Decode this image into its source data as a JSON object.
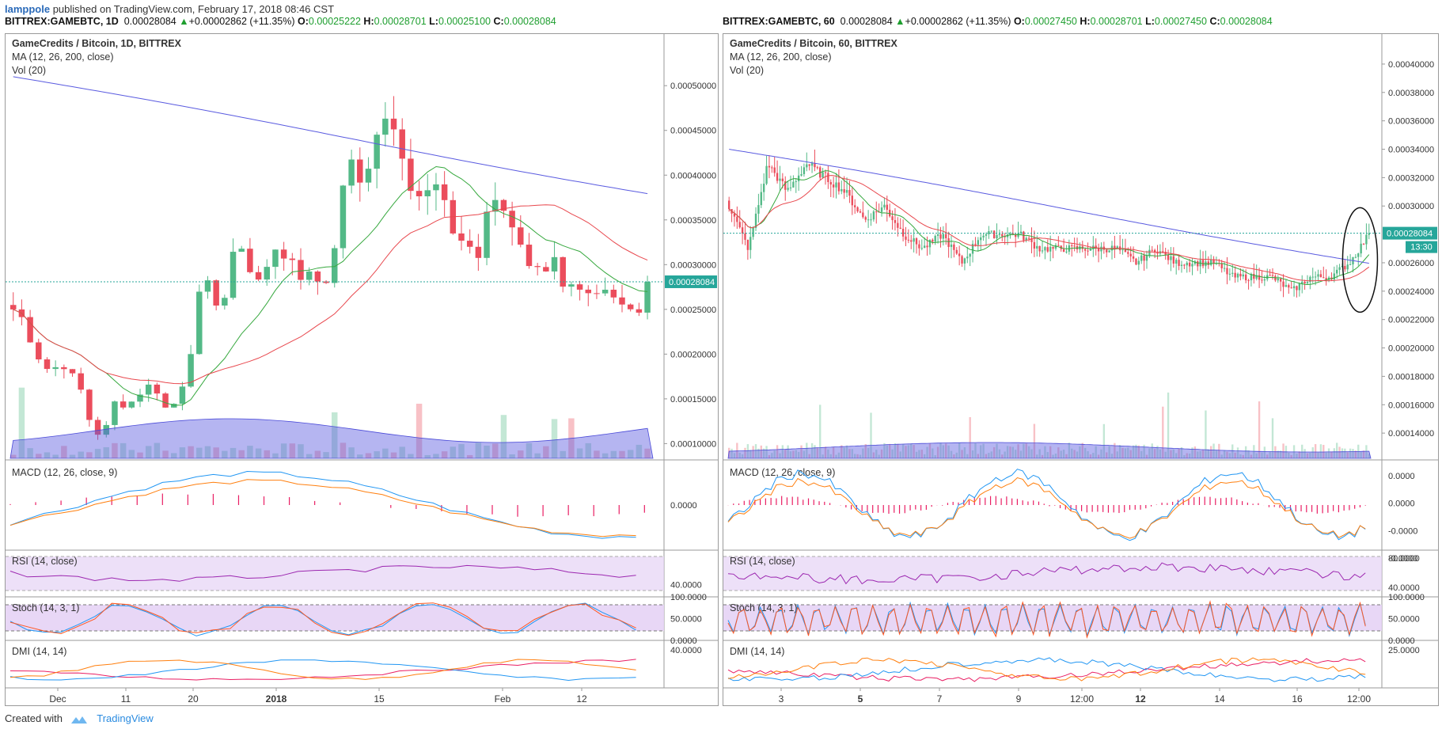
{
  "publish": {
    "user": "lamppole",
    "text": "published on TradingView.com, February 17, 2018 08:46 CST"
  },
  "colors": {
    "up": "#53b987",
    "down": "#eb4d5c",
    "ma12": "#36a83e",
    "ma26": "#e8474d",
    "ma200": "#5a5be0",
    "macd": "#2196f3",
    "signal": "#ff7f0e",
    "hist": "#e91e63",
    "rsi": "#9c27b0",
    "stochK": "#2196f3",
    "stochD": "#ff5722",
    "band": "#e6d3f5",
    "price_tag": "#26a69a"
  },
  "left": {
    "header": {
      "symbol": "BITTREX:GAMEBTC, 1D",
      "last": "0.00028084",
      "change": "+0.00002862 (+11.35%)",
      "o": "0.00025222",
      "h": "0.00028701",
      "l": "0.00025100",
      "c": "0.00028084"
    },
    "legend": [
      "GameCredits / Bitcoin, 1D, BITTREX",
      "MA (12, 26, 200, close)",
      "Vol (20)"
    ],
    "price_tag": "0.00028084",
    "y_ticks": [
      "0.00050000",
      "0.00045000",
      "0.00040000",
      "0.00035000",
      "0.00030000",
      "0.00025000",
      "0.00020000",
      "0.00015000",
      "0.00010000"
    ],
    "x_ticks": [
      "Dec",
      "11",
      "20",
      "2018",
      "15",
      "Feb",
      "12"
    ],
    "ind": {
      "macd": "MACD (12, 26, close, 9)",
      "rsi": "RSI (14, close)",
      "stoch": "Stoch (14, 3, 1)",
      "dmi": "DMI (14, 14)"
    },
    "ind_ticks": {
      "macd": "0.0000",
      "rsi": "40.0000",
      "stoch": [
        "100.0000",
        "50.0000",
        "0.0000"
      ],
      "dmi": "40.0000"
    }
  },
  "right": {
    "header": {
      "symbol": "BITTREX:GAMEBTC, 60",
      "last": "0.00028084",
      "change": "+0.00002862 (+11.35%)",
      "o": "0.00027450",
      "h": "0.00028701",
      "l": "0.00027450",
      "c": "0.00028084"
    },
    "legend": [
      "GameCredits / Bitcoin, 60, BITTREX",
      "MA (12, 26, 200, close)",
      "Vol (20)"
    ],
    "price_tag": "0.00028084",
    "countdown": "13:30",
    "y_ticks": [
      "0.00040000",
      "0.00038000",
      "0.00036000",
      "0.00034000",
      "0.00032000",
      "0.00030000",
      "0.00026000",
      "0.00024000",
      "0.00022000",
      "0.00020000",
      "0.00018000",
      "0.00016000",
      "0.00014000"
    ],
    "x_ticks": [
      "3",
      "5",
      "7",
      "9",
      "12:00",
      "12",
      "14",
      "16",
      "12:00"
    ],
    "ind": {
      "macd": "MACD (12, 26, close, 9)",
      "rsi": "RSI (14, close)",
      "stoch": "Stoch (14, 3, 1)",
      "dmi": "DMI (14, 14)"
    },
    "ind_ticks": {
      "macd": [
        "0.0000",
        "0.0000",
        "-0.0000",
        "-0.0000"
      ],
      "rsi": [
        "80.0000",
        "40.0000"
      ],
      "stoch": [
        "100.0000",
        "50.0000",
        "0.0000"
      ],
      "dmi": "25.0000"
    }
  },
  "footer": {
    "created": "Created with",
    "brand": "TradingView"
  },
  "chart_data": [
    {
      "type": "candlestick",
      "title": "GameCredits / Bitcoin, 1D, BITTREX",
      "ylim": [
        8e-05,
        0.00054
      ],
      "x_labels": [
        "Dec",
        "11",
        "20",
        "2018",
        "15",
        "Feb",
        "12"
      ],
      "close_path": [
        0.00025,
        0.00024,
        0.00021,
        0.00019,
        0.00018,
        0.00019,
        0.00018,
        0.00017,
        0.00013,
        0.00011,
        0.00012,
        0.00015,
        0.00014,
        0.00015,
        0.00016,
        0.00017,
        0.00014,
        0.00014,
        0.00016,
        0.0002,
        0.00027,
        0.00028,
        0.00025,
        0.00027,
        0.00034,
        0.0003,
        0.00028,
        0.00029,
        0.00032,
        0.00031,
        0.0003,
        0.00028,
        0.0003,
        0.00027,
        0.00029,
        0.00036,
        0.00043,
        0.00039,
        0.00041,
        0.00044,
        0.00047,
        0.00044,
        0.00041,
        0.00037,
        0.00038,
        0.00039,
        0.00038,
        0.00034,
        0.00033,
        0.00032,
        0.00031,
        0.00038,
        0.00037,
        0.00035,
        0.00033,
        0.0003,
        0.0003,
        0.00029,
        0.00031,
        0.00027,
        0.00028,
        0.00027,
        0.00027,
        0.00027,
        0.00027,
        0.00026,
        0.00025,
        0.00024,
        0.00028
      ],
      "ma200": {
        "start": 0.00051,
        "end": 0.00038
      },
      "last": 0.00028084
    },
    {
      "type": "candlestick",
      "title": "GameCredits / Bitcoin, 60, BITTREX",
      "ylim": [
        0.00012,
        0.00041
      ],
      "x_labels": [
        "3",
        "5",
        "7",
        "9",
        "12:00",
        "12",
        "14",
        "16",
        "12:00"
      ],
      "close_path": [
        0.0003,
        0.00027,
        0.00033,
        0.00031,
        0.00033,
        0.00032,
        0.00031,
        0.00029,
        0.0003,
        0.00028,
        0.00027,
        0.00028,
        0.00026,
        0.00028,
        0.00028,
        0.00028,
        0.00027,
        0.00027,
        0.00027,
        0.00027,
        0.00027,
        0.00026,
        0.00027,
        0.00026,
        0.00026,
        0.00026,
        0.00025,
        0.00025,
        0.00025,
        0.00024,
        0.00025,
        0.00025,
        0.00026,
        0.00028
      ],
      "ma200": {
        "start": 0.00034,
        "end": 0.00026
      },
      "last": 0.00028084
    }
  ]
}
